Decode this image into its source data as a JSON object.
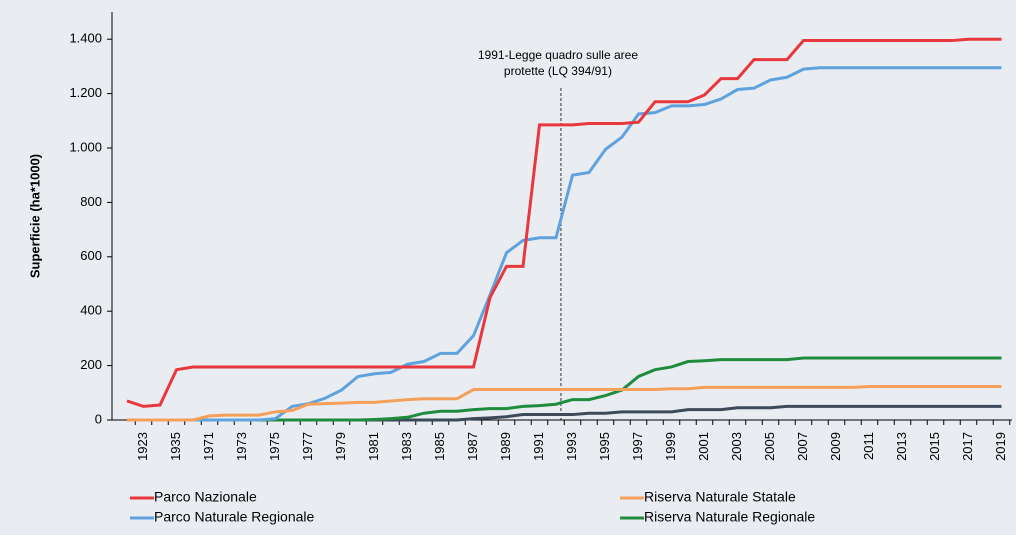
{
  "chart_data": {
    "type": "line",
    "y_label": "Superficie (ha*1000)",
    "annotation": [
      "1991-Legge quadro sulle aree",
      "protette (LQ 394/91)"
    ],
    "categories": [
      null,
      "1923",
      null,
      "1935",
      null,
      "1971",
      null,
      "1973",
      null,
      "1975",
      null,
      "1977",
      null,
      "1979",
      null,
      "1981",
      null,
      "1983",
      null,
      "1985",
      null,
      "1987",
      null,
      "1989",
      null,
      "1991",
      null,
      "1993",
      null,
      "1995",
      null,
      "1997",
      null,
      "1999",
      null,
      "2001",
      null,
      "2003",
      null,
      "2005",
      null,
      "2007",
      null,
      "2009",
      null,
      "2011",
      null,
      "2013",
      null,
      "2015",
      null,
      "2017",
      null,
      "2019"
    ],
    "ylim": [
      0,
      1500
    ],
    "yticks": [
      0,
      200,
      400,
      600,
      800,
      {
        "value": 1000,
        "label": "1.000"
      },
      {
        "value": 1200,
        "label": "1.200"
      },
      {
        "value": 1400,
        "label": "1.400"
      }
    ],
    "series": [
      {
        "name": "Parco Nazionale",
        "color": "#e8383d",
        "values": [
          70,
          50,
          55,
          185,
          195,
          195,
          195,
          195,
          195,
          195,
          195,
          195,
          195,
          195,
          195,
          195,
          195,
          195,
          195,
          195,
          195,
          195,
          450,
          565,
          565,
          1085,
          1085,
          1085,
          1090,
          1090,
          1090,
          1095,
          1170,
          1170,
          1170,
          1195,
          1255,
          1255,
          1325,
          1325,
          1325,
          1395,
          1395,
          1395,
          1395,
          1395,
          1395,
          1395,
          1395,
          1395,
          1395,
          1400,
          1400,
          1400
        ]
      },
      {
        "name": "Riserva Naturale Statale",
        "color": "#f5a05a",
        "values": [
          0,
          0,
          0,
          0,
          0,
          15,
          18,
          18,
          18,
          30,
          35,
          58,
          60,
          62,
          65,
          65,
          70,
          75,
          78,
          78,
          78,
          112,
          112,
          112,
          112,
          112,
          112,
          112,
          112,
          112,
          112,
          112,
          112,
          115,
          115,
          120,
          120,
          120,
          120,
          120,
          120,
          120,
          120,
          120,
          120,
          123,
          123,
          123,
          123,
          123,
          123,
          123,
          123,
          123
        ]
      },
      {
        "name": "Parco Naturale Regionale",
        "color": "#5fa2dd",
        "values": [
          0,
          0,
          0,
          0,
          0,
          0,
          0,
          0,
          0,
          5,
          50,
          60,
          80,
          110,
          160,
          170,
          175,
          205,
          215,
          245,
          245,
          310,
          460,
          615,
          660,
          670,
          670,
          900,
          910,
          995,
          1040,
          1125,
          1130,
          1155,
          1155,
          1160,
          1180,
          1215,
          1220,
          1250,
          1260,
          1290,
          1295,
          1295,
          1295,
          1295,
          1295,
          1295,
          1295,
          1295,
          1295,
          1295,
          1295,
          1295
        ]
      },
      {
        "name": "Riserva Naturale Regionale",
        "color": "#1e8c3c",
        "values": [
          0,
          0,
          0,
          0,
          0,
          0,
          0,
          0,
          0,
          0,
          0,
          0,
          0,
          0,
          0,
          2,
          5,
          10,
          25,
          32,
          32,
          38,
          42,
          42,
          50,
          53,
          58,
          75,
          75,
          90,
          110,
          160,
          185,
          195,
          215,
          218,
          222,
          222,
          222,
          222,
          222,
          228,
          228,
          228,
          228,
          228,
          228,
          228,
          228,
          228,
          228,
          228,
          228,
          228
        ]
      },
      {
        "color": "#3c4a5a",
        "values": [
          0,
          0,
          0,
          0,
          0,
          0,
          0,
          0,
          0,
          0,
          0,
          0,
          0,
          0,
          0,
          0,
          0,
          0,
          0,
          0,
          0,
          5,
          8,
          12,
          20,
          20,
          20,
          20,
          25,
          25,
          30,
          30,
          30,
          30,
          38,
          38,
          38,
          45,
          45,
          45,
          50,
          50,
          50,
          50,
          50,
          50,
          50,
          50,
          50,
          50,
          50,
          50,
          50,
          50
        ]
      }
    ]
  }
}
